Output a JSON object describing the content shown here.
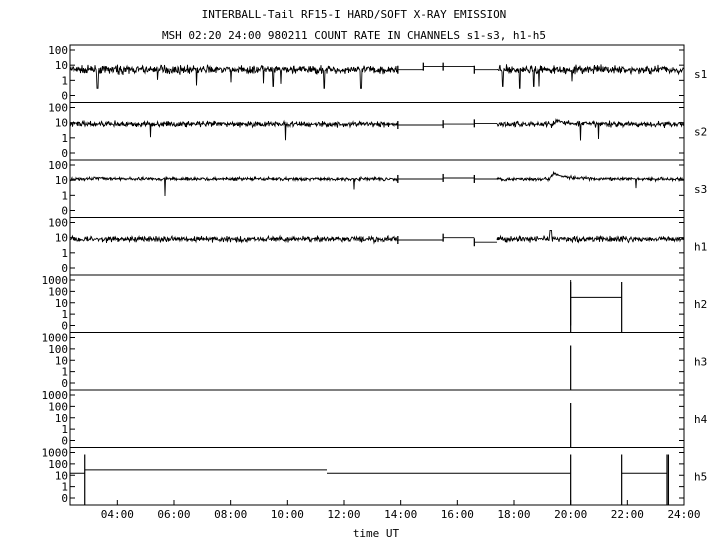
{
  "title": "INTERBALL-Tail RF15-I HARD/SOFT X-RAY EMISSION",
  "subtitle": "MSH 02:20 24:00 980211  COUNT RATE IN CHANNELS s1-s3, h1-h5",
  "colors": {
    "trace": "#000000",
    "frame": "#000000",
    "background": "#ffffff"
  },
  "chart_data": {
    "type": "line",
    "title": "INTERBALL-Tail RF15-I HARD/SOFT X-RAY EMISSION",
    "subtitle": "MSH 02:20 24:00 980211  COUNT RATE IN CHANNELS s1-s3, h1-h5",
    "xlabel": "time UT",
    "x_unit": "hours UT",
    "xlim": [
      2.33,
      24.0
    ],
    "x_ticks": [
      4,
      6,
      8,
      10,
      12,
      14,
      16,
      18,
      20,
      22,
      24
    ],
    "x_tick_labels": [
      "04:00",
      "06:00",
      "08:00",
      "10:00",
      "12:00",
      "14:00",
      "16:00",
      "18:00",
      "20:00",
      "22:00",
      "24:00"
    ],
    "y_scale": "log",
    "panels": [
      {
        "name": "s1",
        "ylim": [
          0,
          100
        ],
        "y_tick_labels": [
          "100",
          "10",
          "1",
          "0"
        ],
        "noisy": true,
        "baseline": 5,
        "noise_decades": 0.2,
        "segments": [
          [
            2.33,
            13.9,
            "noise"
          ],
          [
            13.9,
            14.8,
            5
          ],
          [
            14.8,
            15.5,
            8
          ],
          [
            15.5,
            16.6,
            8
          ],
          [
            16.6,
            17.4,
            5
          ],
          [
            17.4,
            24.0,
            "noise"
          ]
        ],
        "gaps_noise": [
          [
            13.9,
            17.4
          ]
        ],
        "dips": [
          [
            3.3,
            0.3
          ],
          [
            9.5,
            0.4
          ],
          [
            11.3,
            0.3
          ],
          [
            12.6,
            0.3
          ],
          [
            17.6,
            0.4
          ],
          [
            18.2,
            0.3
          ],
          [
            18.7,
            0.4
          ]
        ]
      },
      {
        "name": "s2",
        "ylim": [
          0,
          100
        ],
        "y_tick_labels": [
          "100",
          "10",
          "1",
          "0"
        ],
        "noisy": true,
        "baseline": 8,
        "noise_decades": 0.14,
        "segments": [
          [
            2.33,
            13.9,
            "noise"
          ],
          [
            13.9,
            15.5,
            7
          ],
          [
            15.5,
            16.6,
            8
          ],
          [
            16.6,
            17.4,
            9
          ],
          [
            17.4,
            24.0,
            "noise"
          ]
        ],
        "bumps": [
          [
            19.5,
            1.6
          ]
        ]
      },
      {
        "name": "s3",
        "ylim": [
          0,
          100
        ],
        "y_tick_labels": [
          "100",
          "10",
          "1",
          "0"
        ],
        "noisy": true,
        "baseline": 12,
        "noise_decades": 0.08,
        "segments": [
          [
            2.33,
            13.9,
            "noise"
          ],
          [
            13.9,
            15.5,
            12
          ],
          [
            15.5,
            16.6,
            14
          ],
          [
            16.6,
            17.4,
            12
          ],
          [
            17.4,
            24.0,
            "noise"
          ]
        ],
        "bumps": [
          [
            19.4,
            2.5
          ],
          [
            3.2,
            1.2
          ]
        ]
      },
      {
        "name": "h1",
        "ylim": [
          0,
          100
        ],
        "y_tick_labels": [
          "100",
          "10",
          "1",
          "0"
        ],
        "noisy": true,
        "baseline": 8,
        "noise_decades": 0.14,
        "segments": [
          [
            2.33,
            13.9,
            "noise"
          ],
          [
            13.9,
            15.5,
            7
          ],
          [
            15.5,
            16.6,
            10
          ],
          [
            16.6,
            17.4,
            5
          ],
          [
            17.4,
            24.0,
            "noise"
          ]
        ],
        "spikes": [
          [
            19.3,
            30
          ]
        ]
      },
      {
        "name": "h2",
        "ylim": [
          0,
          1000
        ],
        "y_tick_labels": [
          "1000",
          "100",
          "10",
          "1",
          "0"
        ],
        "noisy": false,
        "steps": [
          [
            20.0,
            1000,
            20.0,
            0
          ],
          [
            20.0,
            30,
            21.8,
            30
          ]
        ],
        "verticals": [
          20.0,
          21.8
        ]
      },
      {
        "name": "h3",
        "ylim": [
          0,
          1000
        ],
        "y_tick_labels": [
          "1000",
          "100",
          "10",
          "1",
          "0"
        ],
        "noisy": false,
        "verticals_full": [
          20.0
        ]
      },
      {
        "name": "h4",
        "ylim": [
          0,
          1000
        ],
        "y_tick_labels": [
          "1000",
          "100",
          "10",
          "1",
          "0"
        ],
        "noisy": false,
        "verticals_full": [
          20.0
        ]
      },
      {
        "name": "h5",
        "ylim": [
          0,
          1000
        ],
        "y_tick_labels": [
          "1000",
          "100",
          "10",
          "1",
          "0"
        ],
        "noisy": false,
        "steps": [
          [
            2.33,
            15,
            2.85,
            15
          ],
          [
            2.85,
            30,
            11.4,
            30
          ],
          [
            11.4,
            15,
            20.0,
            15
          ],
          [
            21.8,
            15,
            23.4,
            15
          ]
        ],
        "verticals": [
          2.85,
          20.0,
          21.8,
          23.4,
          23.45
        ]
      }
    ]
  }
}
